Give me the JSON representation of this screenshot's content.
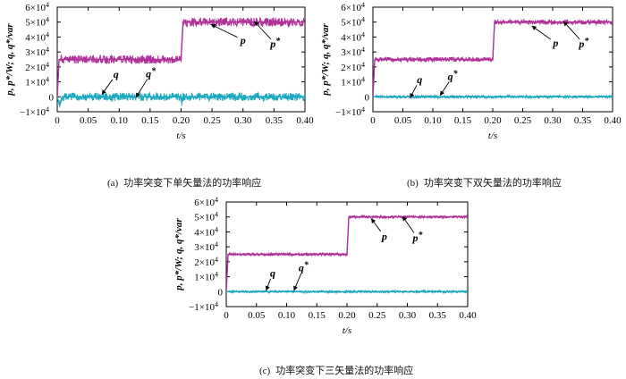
{
  "figure": {
    "colors": {
      "p": "#b0309a",
      "q": "#1aa7bf",
      "axis": "#000000"
    },
    "panel_labels": {
      "a": {
        "tag": "(a)",
        "caption": "功率突变下单矢量法的功率响应"
      },
      "b": {
        "tag": "(b)",
        "caption": "功率突变下双矢量法的功率响应"
      },
      "c": {
        "tag": "(c)",
        "caption": "功率突变下三矢量法的功率响应"
      }
    }
  },
  "chart_data": [
    {
      "id": "a",
      "type": "line",
      "title": "",
      "xlabel": "t/s",
      "ylabel": "p, p*/W; q, q*/var",
      "xlim": [
        0,
        0.4
      ],
      "ylim": [
        -10000,
        60000
      ],
      "xticks": [
        "0",
        "0.05",
        "0.10",
        "0.15",
        "0.20",
        "0.25",
        "0.30",
        "0.35",
        "0.40"
      ],
      "yticks": [
        {
          "base": "−1×10",
          "exp": "4"
        },
        {
          "base": "0",
          "exp": ""
        },
        {
          "base": "1×10",
          "exp": "4"
        },
        {
          "base": "2×10",
          "exp": "4"
        },
        {
          "base": "3×10",
          "exp": "4"
        },
        {
          "base": "4×10",
          "exp": "4"
        },
        {
          "base": "5×10",
          "exp": "4"
        },
        {
          "base": "6×10",
          "exp": "4"
        }
      ],
      "series": [
        {
          "name": "p",
          "points": [
            [
              0,
              0
            ],
            [
              0.003,
              25000
            ],
            [
              0.2,
              25000
            ],
            [
              0.203,
              50000
            ],
            [
              0.4,
              50000
            ]
          ],
          "ripple": 3000
        },
        {
          "name": "q",
          "points": [
            [
              0,
              0
            ],
            [
              0.004,
              -6000
            ],
            [
              0.008,
              0
            ],
            [
              0.2,
              0
            ],
            [
              0.201,
              -4000
            ],
            [
              0.203,
              0
            ],
            [
              0.4,
              0
            ]
          ],
          "ripple": 2800
        }
      ],
      "annotations": [
        {
          "label": "p",
          "sup": "",
          "tx": 0.3,
          "ty": 38000,
          "ax": 0.248,
          "ay": 48500
        },
        {
          "label": "p",
          "sup": "*",
          "tx": 0.352,
          "ty": 35500,
          "ax": 0.318,
          "ay": 50500
        },
        {
          "label": "q",
          "sup": "",
          "tx": 0.095,
          "ty": 15000,
          "ax": 0.072,
          "ay": 1500
        },
        {
          "label": "q",
          "sup": "*",
          "tx": 0.151,
          "ty": 15500,
          "ax": 0.127,
          "ay": -500
        }
      ]
    },
    {
      "id": "b",
      "type": "line",
      "title": "",
      "xlabel": "t/s",
      "ylabel": "p, p*/W; q, q*/var",
      "xlim": [
        0,
        0.4
      ],
      "ylim": [
        -10000,
        60000
      ],
      "xticks": [
        "0",
        "0.05",
        "0.10",
        "0.15",
        "0.20",
        "0.25",
        "0.30",
        "0.35",
        "0.40"
      ],
      "yticks": [
        {
          "base": "−1×10",
          "exp": "4"
        },
        {
          "base": "0",
          "exp": ""
        },
        {
          "base": "1×10",
          "exp": "4"
        },
        {
          "base": "2×10",
          "exp": "4"
        },
        {
          "base": "3×10",
          "exp": "4"
        },
        {
          "base": "4×10",
          "exp": "4"
        },
        {
          "base": "5×10",
          "exp": "4"
        },
        {
          "base": "6×10",
          "exp": "4"
        }
      ],
      "series": [
        {
          "name": "p",
          "points": [
            [
              0,
              0
            ],
            [
              0.003,
              25000
            ],
            [
              0.2,
              25000
            ],
            [
              0.203,
              50000
            ],
            [
              0.4,
              50000
            ]
          ],
          "ripple": 1600
        },
        {
          "name": "q",
          "points": [
            [
              0,
              0
            ],
            [
              0.003,
              0
            ],
            [
              0.4,
              0
            ]
          ],
          "ripple": 900
        }
      ],
      "annotations": [
        {
          "label": "p",
          "sup": "",
          "tx": 0.305,
          "ty": 36000,
          "ax": 0.265,
          "ay": 47500
        },
        {
          "label": "p",
          "sup": "*",
          "tx": 0.352,
          "ty": 35500,
          "ax": 0.318,
          "ay": 50500
        },
        {
          "label": "q",
          "sup": "",
          "tx": 0.078,
          "ty": 11500,
          "ax": 0.062,
          "ay": -800
        },
        {
          "label": "q",
          "sup": "*",
          "tx": 0.133,
          "ty": 13500,
          "ax": 0.112,
          "ay": 800
        }
      ]
    },
    {
      "id": "c",
      "type": "line",
      "title": "",
      "xlabel": "t/s",
      "ylabel": "p, p*/W; q, q*/var",
      "xlim": [
        0,
        0.4
      ],
      "ylim": [
        -10000,
        60000
      ],
      "xticks": [
        "0",
        "0.05",
        "0.10",
        "0.15",
        "0.20",
        "0.25",
        "0.30",
        "0.35",
        "0.40"
      ],
      "yticks": [
        {
          "base": "−1×10",
          "exp": "4"
        },
        {
          "base": "0",
          "exp": ""
        },
        {
          "base": "1×10",
          "exp": "4"
        },
        {
          "base": "2×10",
          "exp": "4"
        },
        {
          "base": "3×10",
          "exp": "4"
        },
        {
          "base": "4×10",
          "exp": "4"
        },
        {
          "base": "5×10",
          "exp": "4"
        },
        {
          "base": "6×10",
          "exp": "4"
        }
      ],
      "series": [
        {
          "name": "p",
          "points": [
            [
              0,
              0
            ],
            [
              0.003,
              25000
            ],
            [
              0.2,
              25000
            ],
            [
              0.203,
              50000
            ],
            [
              0.4,
              50000
            ]
          ],
          "ripple": 900
        },
        {
          "name": "q",
          "points": [
            [
              0,
              0
            ],
            [
              0.003,
              0
            ],
            [
              0.4,
              0
            ]
          ],
          "ripple": 700
        }
      ],
      "annotations": [
        {
          "label": "p",
          "sup": "",
          "tx": 0.262,
          "ty": 37000,
          "ax": 0.24,
          "ay": 49000
        },
        {
          "label": "p",
          "sup": "*",
          "tx": 0.317,
          "ty": 36000,
          "ax": 0.292,
          "ay": 50500
        },
        {
          "label": "q",
          "sup": "",
          "tx": 0.077,
          "ty": 12500,
          "ax": 0.066,
          "ay": 700
        },
        {
          "label": "q",
          "sup": "*",
          "tx": 0.128,
          "ty": 16000,
          "ax": 0.112,
          "ay": 600
        }
      ]
    }
  ]
}
